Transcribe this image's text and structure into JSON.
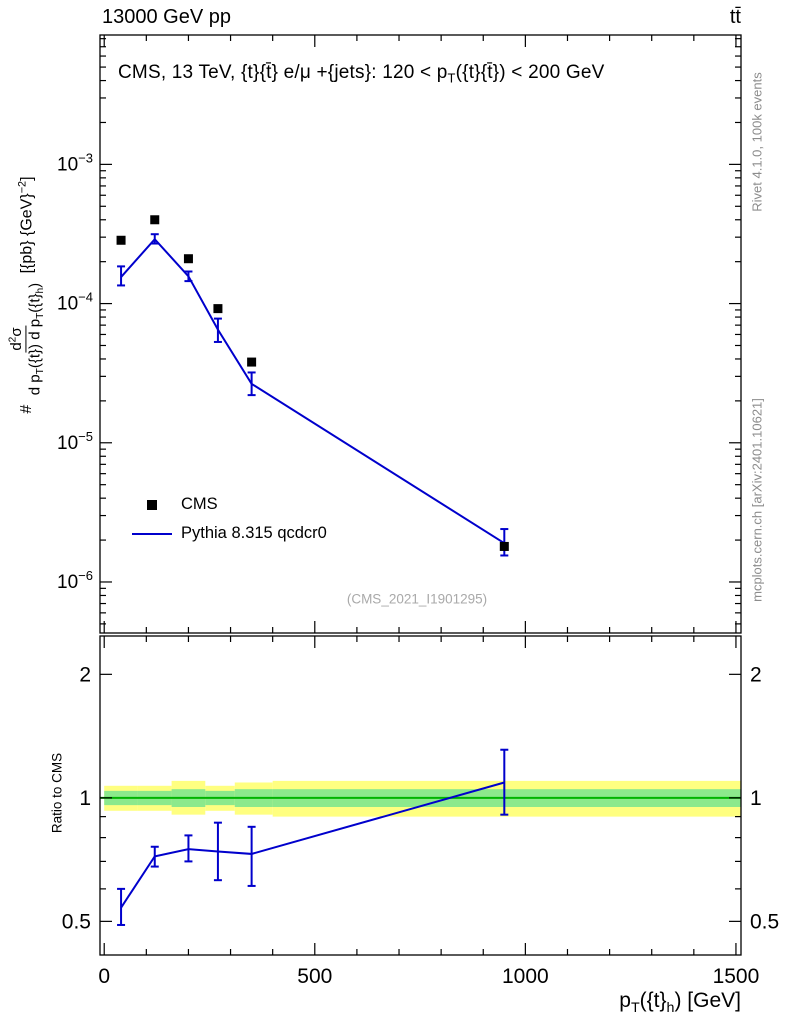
{
  "header": {
    "left": "13000 GeV pp",
    "right": "tt̄"
  },
  "main_panel": {
    "title_segments": [
      {
        "t": "CMS, 13 TeV, {t}{t̄} e/μ +{jets}: 120 <  p"
      },
      {
        "t": "T",
        "v": "sub"
      },
      {
        "t": "({t}{t̄}) < 200 GeV"
      }
    ],
    "watermark": "(CMS_2021_I1901295)",
    "ylabel": {
      "prefix": "#",
      "numerator": [
        {
          "t": "d"
        },
        {
          "t": "2",
          "v": "sup"
        },
        {
          "t": "σ"
        }
      ],
      "denominator": [
        {
          "t": "d p"
        },
        {
          "t": "T",
          "v": "sub"
        },
        {
          "t": "({t}) d p"
        },
        {
          "t": "T",
          "v": "sub"
        },
        {
          "t": "({t}"
        },
        {
          "t": "h",
          "v": "sub"
        },
        {
          "t": ")"
        }
      ],
      "units": [
        {
          "t": " [{pb} {GeV}"
        },
        {
          "t": "−2",
          "v": "sup"
        },
        {
          "t": "]"
        }
      ]
    }
  },
  "legend": [
    {
      "label": "CMS",
      "marker": "black-square"
    },
    {
      "label": "Pythia 8.315 qcdcr0",
      "marker": "blue-line"
    }
  ],
  "ratio_panel": {
    "ylabel": "Ratio to CMS"
  },
  "xaxis": {
    "label_segments": [
      {
        "t": "p"
      },
      {
        "t": "T",
        "v": "sub"
      },
      {
        "t": "({t}"
      },
      {
        "t": "h",
        "v": "sub"
      },
      {
        "t": ") [GeV]"
      }
    ]
  },
  "side_notes": {
    "top": "Rivet 4.1.0,  100k events",
    "bottom": "mcplots.cern.ch [arXiv:2401.10621]"
  },
  "colors": {
    "line": "#0000cc",
    "marker": "#000000",
    "band_yellow": "#ffff80",
    "band_green": "#8ce98c",
    "ref_line": "#00b400",
    "frame": "#000000",
    "muted": "#8c8c8c"
  },
  "chart_data": {
    "type": "line",
    "title": "CMS, 13 TeV, {t}{t̄} e/μ +{jets}: 120 < pT({t}{t̄}) < 200 GeV",
    "xlabel": "pT({t}_h) [GeV]",
    "ylabel": "# d2σ / d pT({t}) d pT({t}_h) [{pb} {GeV}^-2]",
    "x": [
      40,
      120,
      200,
      270,
      350,
      950
    ],
    "series": [
      {
        "name": "CMS",
        "style": "square-marker",
        "color": "#000000",
        "y": [
          0.000285,
          0.0004,
          0.00021,
          9.2e-05,
          3.8e-05,
          1.8e-06
        ]
      },
      {
        "name": "Pythia 8.315 qcdcr0",
        "style": "line-with-errors",
        "color": "#0000cc",
        "y": [
          0.000155,
          0.00029,
          0.000157,
          6.5e-05,
          2.65e-05,
          1.9e-06
        ],
        "y_lo": [
          0.000135,
          0.00027,
          0.000145,
          5.3e-05,
          2.2e-05,
          1.55e-06
        ],
        "y_hi": [
          0.000185,
          0.000315,
          0.00017,
          7.8e-05,
          3.2e-05,
          2.4e-06
        ]
      }
    ],
    "axes": {
      "x_range": [
        -10,
        1512
      ],
      "x_major_ticks": [
        0,
        500,
        1000,
        1500
      ],
      "x_minor_step": 100,
      "y_scale": "log",
      "y_range": [
        4.3e-07,
        0.0085
      ],
      "y_major_ticks": [
        1e-06,
        1e-05,
        0.0001,
        0.001
      ]
    },
    "ratio": {
      "y_scale": "log",
      "y_range": [
        0.414,
        2.48
      ],
      "y_ticks": [
        0.5,
        1,
        2
      ],
      "y_minor_ticks": [
        0.6,
        0.7,
        0.8,
        0.9
      ],
      "y": [
        0.54,
        0.72,
        0.75,
        0.74,
        0.73,
        1.09
      ],
      "y_lo": [
        0.49,
        0.68,
        0.7,
        0.63,
        0.61,
        0.91
      ],
      "y_hi": [
        0.6,
        0.76,
        0.81,
        0.87,
        0.85,
        1.31
      ],
      "bands": {
        "edges": [
          0,
          80,
          160,
          240,
          310,
          400,
          1500
        ],
        "yellow_lo": [
          0.93,
          0.93,
          0.91,
          0.93,
          0.91,
          0.9
        ],
        "yellow_hi": [
          1.07,
          1.07,
          1.1,
          1.07,
          1.09,
          1.1
        ],
        "green_lo": [
          0.96,
          0.96,
          0.95,
          0.96,
          0.95,
          0.95
        ],
        "green_hi": [
          1.04,
          1.04,
          1.05,
          1.04,
          1.05,
          1.05
        ]
      }
    }
  }
}
